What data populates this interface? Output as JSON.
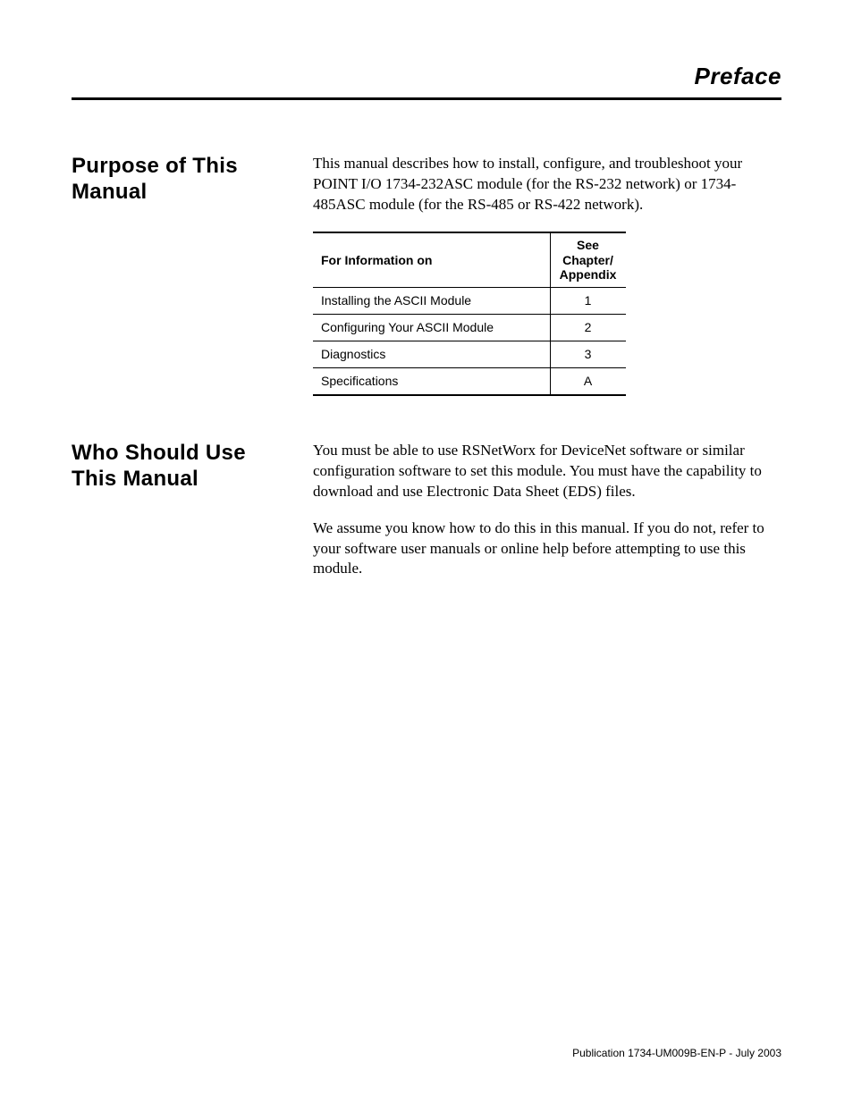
{
  "header": {
    "title": "Preface"
  },
  "sections": [
    {
      "title": "Purpose of This Manual",
      "paragraphs": [
        "This manual describes how to install, configure, and troubleshoot your POINT I/O 1734-232ASC module (for the RS-232 network) or 1734-485ASC module (for the RS-485 or RS-422 network)."
      ],
      "table": {
        "columns": [
          "For Information on",
          "See Chapter/ Appendix"
        ],
        "rows": [
          [
            "Installing the ASCII Module",
            "1"
          ],
          [
            "Configuring Your ASCII Module",
            "2"
          ],
          [
            "Diagnostics",
            "3"
          ],
          [
            "Specifications",
            "A"
          ]
        ],
        "col_widths": [
          "266px",
          "84px"
        ],
        "border_color": "#000000",
        "header_fontsize": 14,
        "cell_fontsize": 14,
        "font_family": "Arial Narrow"
      }
    },
    {
      "title": "Who Should Use This Manual",
      "paragraphs": [
        "You must be able to use RSNetWorx for DeviceNet software or similar configuration software to set this module. You must have the capability to download and use Electronic Data Sheet (EDS) files.",
        "We assume you know how to do this in this manual. If you do not, refer to your software user manuals or online help before attempting to use this module."
      ]
    }
  ],
  "footer": {
    "text": "Publication 1734-UM009B-EN-P - July 2003"
  },
  "style": {
    "page_bg": "#ffffff",
    "text_color": "#000000",
    "heading_font": "Arial Narrow",
    "body_font": "ITC Garamond",
    "heading_fontsize": 24,
    "body_fontsize": 17,
    "header_title_fontsize": 26,
    "header_rule_weight": 3
  }
}
